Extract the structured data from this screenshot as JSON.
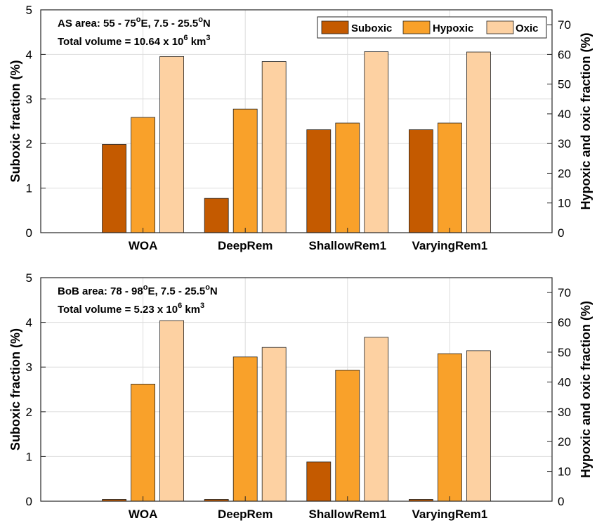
{
  "chart_data": [
    {
      "type": "bar",
      "categories": [
        "WOA",
        "DeepRem",
        "ShallowRem1",
        "VaryingRem1"
      ],
      "series": [
        {
          "name": "Suboxic",
          "axis": "left",
          "color": "#c45a00",
          "values": [
            1.98,
            0.77,
            2.31,
            2.31
          ]
        },
        {
          "name": "Hypoxic",
          "axis": "right",
          "color": "#f9a12a",
          "values": [
            38.8,
            41.6,
            36.9,
            36.9
          ]
        },
        {
          "name": "Oxic",
          "axis": "right",
          "color": "#fdd1a2",
          "values": [
            59.3,
            57.6,
            60.9,
            60.8
          ]
        }
      ],
      "ylabel": "Suboxic fraction (%)",
      "ylabel_right": "Hypoxic and oxic fraction (%)",
      "ylim": [
        0,
        5
      ],
      "yticks": [
        "0",
        "1",
        "2",
        "3",
        "4",
        "5"
      ],
      "ylim_right": [
        0,
        75
      ],
      "yticks_right": [
        "0",
        "10",
        "20",
        "30",
        "40",
        "50",
        "60",
        "70"
      ],
      "grid": true,
      "legend": "top-right",
      "annotation": {
        "line1": "AS area: 55 - 75",
        "line1_sup1": "o",
        "line1_mid": "E, 7.5 - 25.5",
        "line1_sup2": "o",
        "line1_end": "N",
        "line2": "Total volume = 10.64 x 10",
        "line2_sup1": "6",
        "line2_mid": " km",
        "line2_sup2": "3"
      }
    },
    {
      "type": "bar",
      "categories": [
        "WOA",
        "DeepRem",
        "ShallowRem1",
        "VaryingRem1"
      ],
      "series": [
        {
          "name": "Suboxic",
          "axis": "left",
          "color": "#c45a00",
          "values": [
            0.04,
            0.04,
            0.88,
            0.04
          ]
        },
        {
          "name": "Hypoxic",
          "axis": "right",
          "color": "#f9a12a",
          "values": [
            39.3,
            48.4,
            44.0,
            49.5
          ]
        },
        {
          "name": "Oxic",
          "axis": "right",
          "color": "#fdd1a2",
          "values": [
            60.6,
            51.6,
            55.0,
            50.5
          ]
        }
      ],
      "ylabel": "Suboxic fraction (%)",
      "ylabel_right": "Hypoxic and oxic fraction (%)",
      "ylim": [
        0,
        5
      ],
      "yticks": [
        "0",
        "1",
        "2",
        "3",
        "4",
        "5"
      ],
      "ylim_right": [
        0,
        75
      ],
      "yticks_right": [
        "0",
        "10",
        "20",
        "30",
        "40",
        "50",
        "60",
        "70"
      ],
      "grid": true,
      "legend": "none",
      "annotation": {
        "line1": "BoB area: 78 - 98",
        "line1_sup1": "o",
        "line1_mid": "E, 7.5 - 25.5",
        "line1_sup2": "o",
        "line1_end": "N",
        "line2": "Total volume = 5.23 x 10",
        "line2_sup1": "6",
        "line2_mid": " km",
        "line2_sup2": "3"
      }
    }
  ]
}
